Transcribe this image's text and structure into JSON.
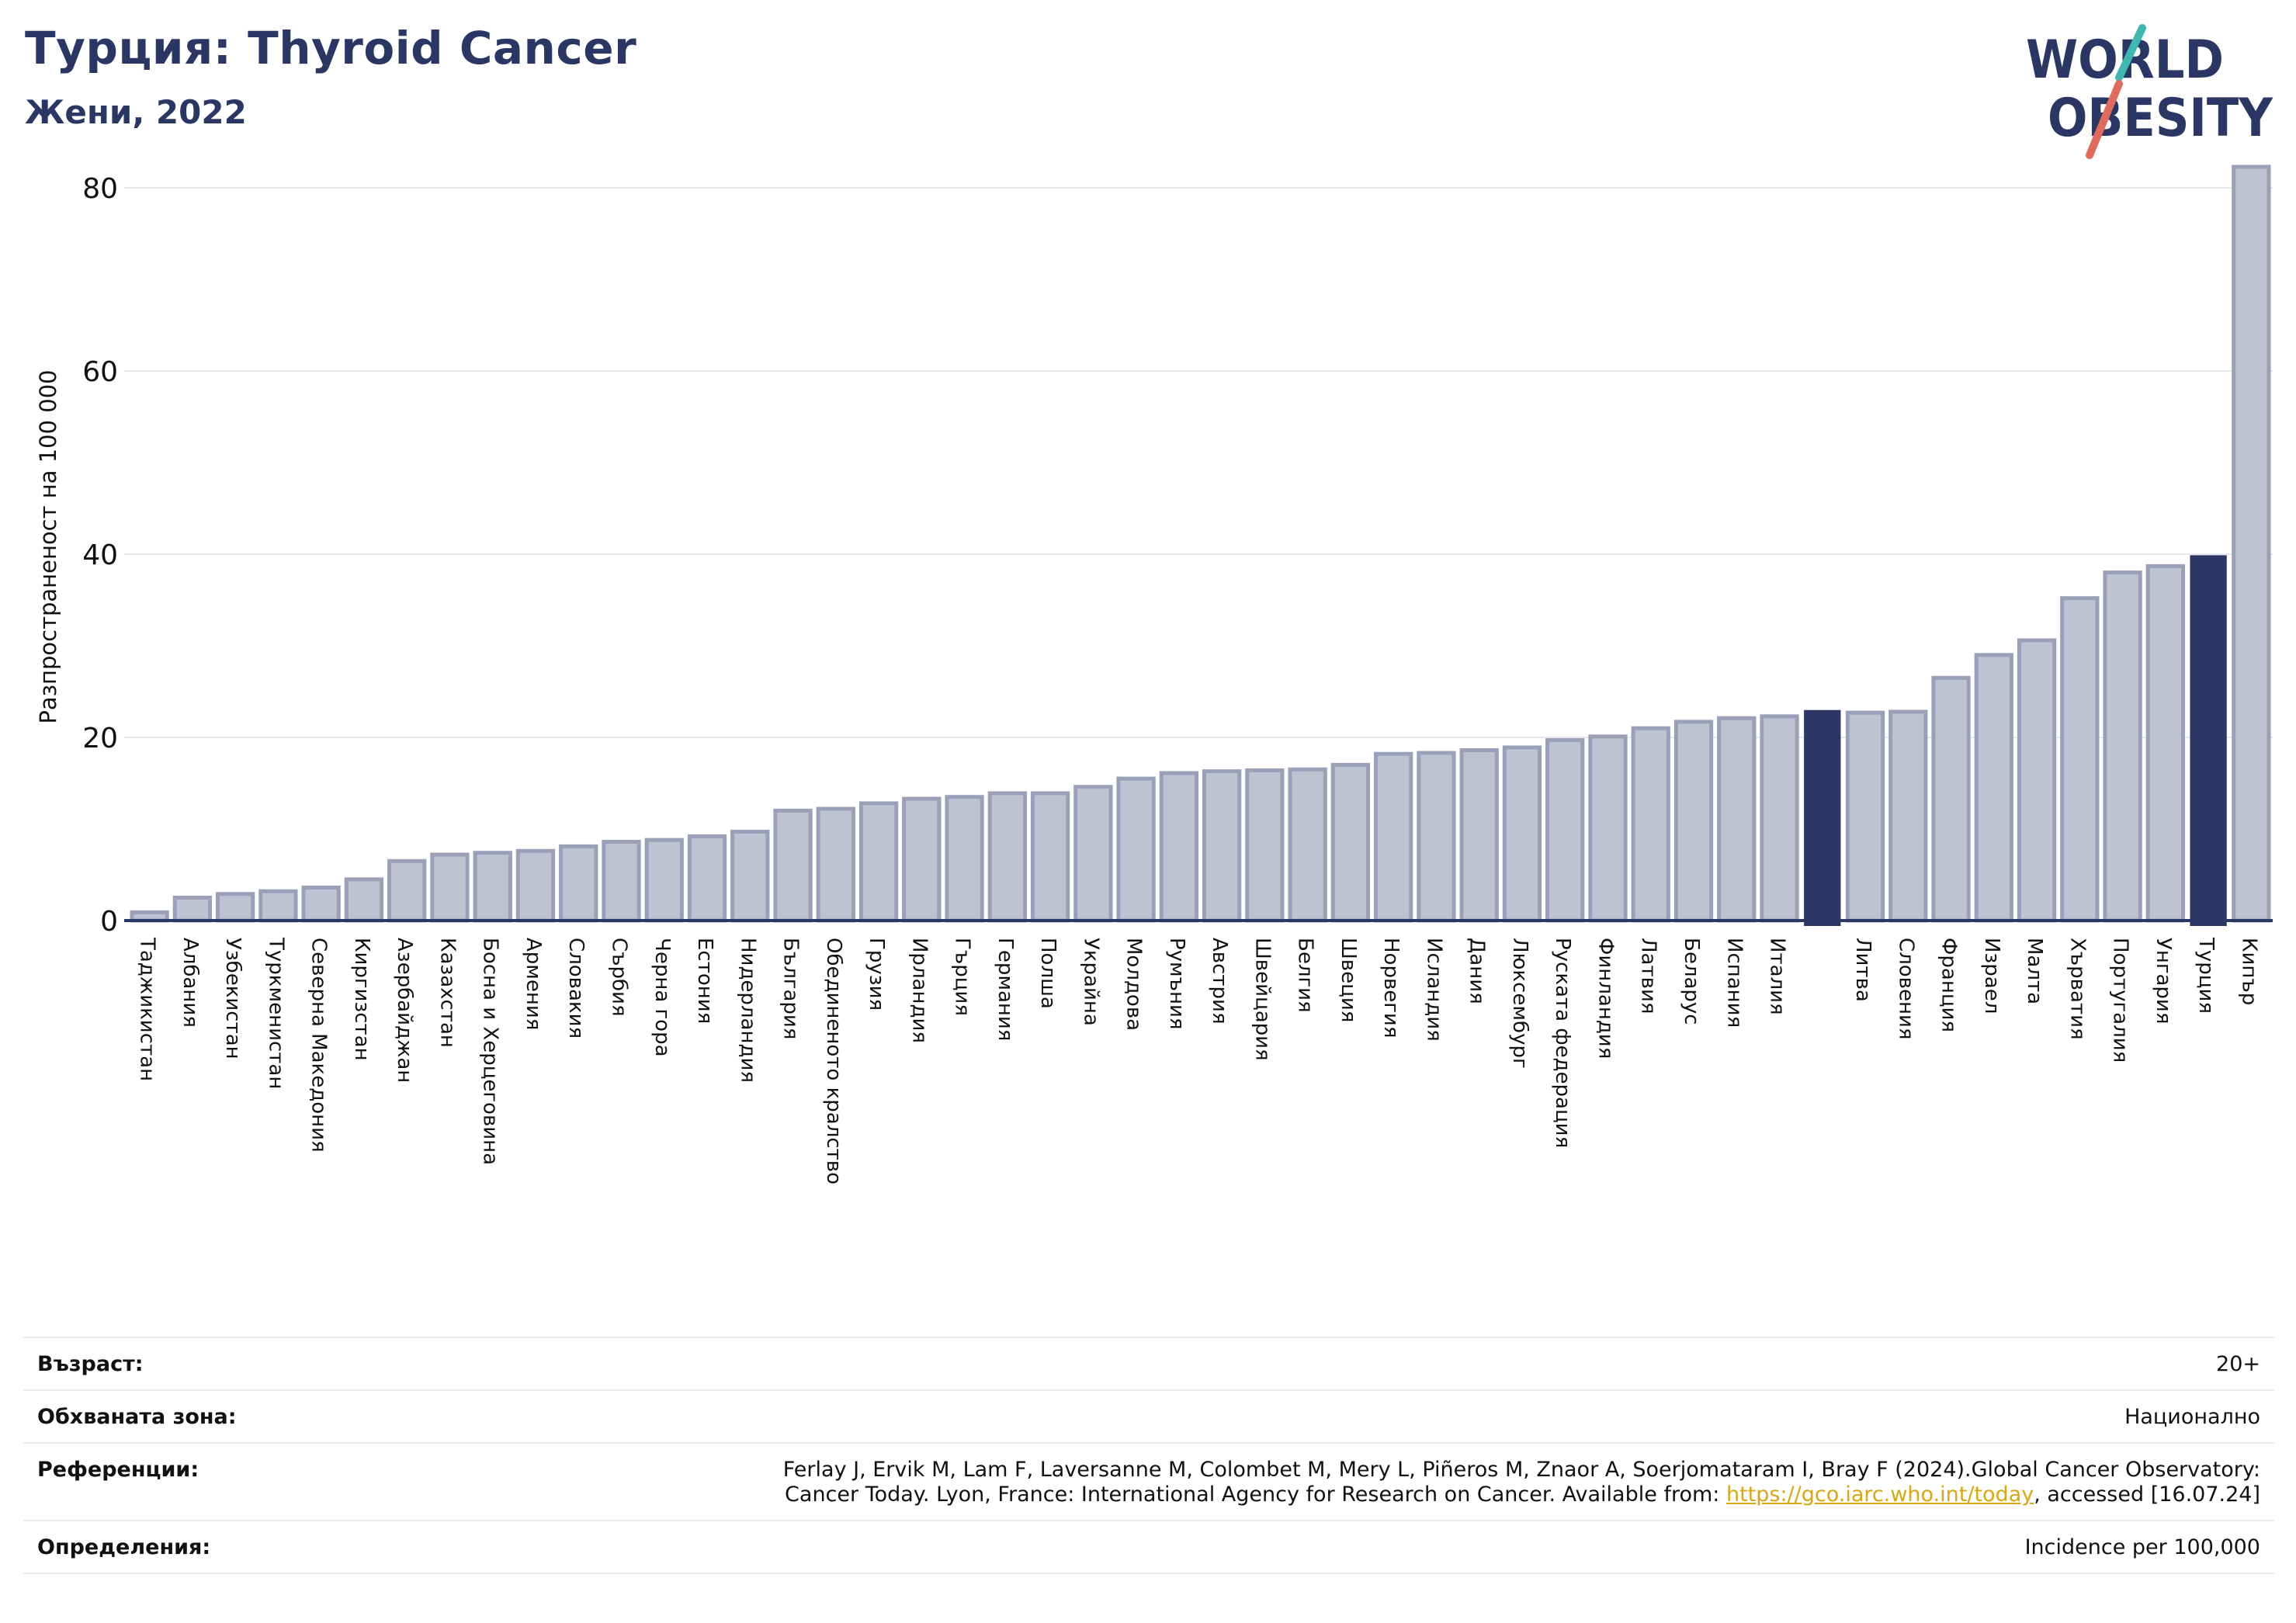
{
  "header": {
    "title": "Турция: Thyroid Cancer",
    "subtitle": "Жени, 2022"
  },
  "logo": {
    "line1": "WORLD",
    "line2": "OBESITY",
    "colors": {
      "text": "#2a3764",
      "slash_teal": "#3fb8b0",
      "slash_red": "#e06b5d"
    }
  },
  "colors": {
    "bar_default": "#bfc3d1",
    "bar_default_border": "#9aa0b8",
    "bar_highlight": "#2a3764",
    "axis": "#2a3764",
    "grid": "#e6e8ee"
  },
  "chart_data": {
    "type": "bar",
    "ylabel": "Разпространеност  на 100 000",
    "ylim": [
      0,
      85
    ],
    "yticks": [
      0,
      20,
      40,
      60,
      80
    ],
    "grid": true,
    "categories": [
      "Таджикистан",
      "Албания",
      "Узбекистан",
      "Туркменистан",
      "Северна Македония",
      "Киргизстан",
      "Азербайджан",
      "Казахстан",
      "Босна и Херцеговина",
      "Армения",
      "Словакия",
      "Сърбия",
      "Черна гора",
      "Естония",
      "Нидерландия",
      "България",
      "Обединеното кралство",
      "Грузия",
      "Ирландия",
      "Гърция",
      "Германия",
      "Полша",
      "Украйна",
      "Молдова",
      "Румъния",
      "Австрия",
      "Швейцария",
      "Белгия",
      "Швеция",
      "Норвегия",
      "Исландия",
      "Дания",
      "Люксембург",
      "Руската федерация",
      "Финландия",
      "Латвия",
      "Беларус",
      "Испания",
      "Италия",
      "",
      "Литва",
      "Словения",
      "Франция",
      "Израел",
      "Малта",
      "Хърватия",
      "Португалия",
      "Унгария",
      "Турция",
      "Кипър"
    ],
    "values": [
      0.9,
      2.5,
      2.9,
      3.2,
      3.6,
      4.5,
      6.5,
      7.2,
      7.4,
      7.6,
      8.1,
      8.6,
      8.8,
      9.2,
      9.7,
      12.0,
      12.2,
      12.8,
      13.3,
      13.5,
      13.9,
      13.9,
      14.6,
      15.5,
      16.1,
      16.3,
      16.4,
      16.5,
      17.0,
      18.2,
      18.3,
      18.6,
      18.9,
      19.7,
      20.1,
      21.0,
      21.7,
      22.1,
      22.3,
      22.9,
      22.7,
      22.8,
      26.5,
      29.0,
      30.6,
      35.2,
      38.0,
      38.7,
      39.8,
      82.3
    ],
    "highlight": [
      39,
      48
    ]
  },
  "info": {
    "age_label": "Възраст:",
    "age_value": "20+",
    "area_label": "Обхваната зона:",
    "area_value": "Национално",
    "refs_label": "Референции:",
    "refs_text_1": "Ferlay J, Ervik M, Lam F, Laversanne M, Colombet M, Mery L, Piñeros M, Znaor A, Soerjomataram I, Bray F (2024).Global Cancer Observatory:",
    "refs_text_2": "Cancer Today. Lyon, France: International Agency for Research on Cancer. Available from: ",
    "refs_link": "https://gco.iarc.who.int/today",
    "refs_text_3": ", accessed [16.07.24]",
    "defs_label": "Определения:",
    "defs_value": "Incidence per 100,000"
  }
}
